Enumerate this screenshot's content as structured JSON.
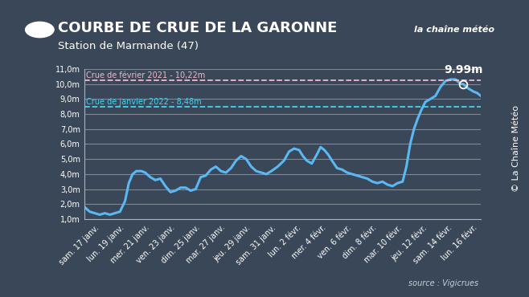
{
  "chart_data": {
    "type": "line",
    "title": "COURBE DE CRUE DE LA GARONNE",
    "subtitle": "Station de Marmande (47)",
    "logo": "la chaîne météo",
    "source": "source : Vigicrues",
    "copyright": "© La Chaîne Météo",
    "color": "#5ab8f2",
    "grid": true,
    "x": [
      -0.8,
      -0.4,
      0,
      0.4,
      0.8,
      1.2,
      1.6,
      2.0,
      2.4,
      2.7,
      3.0,
      3.3,
      3.7,
      4.0,
      4.4,
      4.8,
      5.2,
      5.6,
      6.0,
      6.4,
      6.8,
      7.2,
      7.6,
      8.0,
      8.4,
      8.8,
      9.2,
      9.6,
      10.0,
      10.4,
      10.8,
      11.2,
      11.6,
      12.0,
      12.4,
      12.8,
      13.2,
      13.6,
      14.0,
      14.5,
      15.0,
      15.4,
      15.8,
      16.2,
      16.5,
      16.8,
      17.2,
      17.6,
      17.9,
      18.2,
      18.5,
      18.8,
      19.2,
      19.6,
      20.0,
      20.4,
      20.8,
      21.2,
      21.6,
      22.0,
      22.4,
      22.8,
      23.2,
      23.6,
      24.0,
      24.4,
      24.7,
      25.0,
      25.3,
      25.6,
      25.9,
      26.2,
      26.6,
      27.0,
      27.4,
      27.8,
      28.2,
      28.6,
      29.0,
      29.2,
      29.6,
      30.0,
      30.3,
      30.6
    ],
    "values": [
      1.8,
      1.5,
      1.4,
      1.3,
      1.4,
      1.3,
      1.4,
      1.5,
      2.2,
      3.4,
      4.0,
      4.2,
      4.2,
      4.1,
      3.8,
      3.6,
      3.7,
      3.2,
      2.8,
      2.9,
      3.1,
      3.1,
      2.9,
      3.0,
      3.8,
      3.9,
      4.3,
      4.5,
      4.2,
      4.1,
      4.4,
      4.9,
      5.2,
      5.0,
      4.5,
      4.2,
      4.1,
      4.0,
      4.2,
      4.5,
      4.9,
      5.5,
      5.7,
      5.6,
      5.2,
      4.9,
      4.7,
      5.3,
      5.8,
      5.6,
      5.3,
      4.9,
      4.4,
      4.3,
      4.1,
      4.0,
      3.9,
      3.8,
      3.7,
      3.5,
      3.4,
      3.5,
      3.3,
      3.2,
      3.4,
      3.5,
      4.5,
      6.0,
      7.0,
      7.7,
      8.3,
      8.8,
      9.0,
      9.2,
      9.8,
      10.2,
      10.3,
      10.3,
      10.0,
      9.99,
      9.7,
      9.5,
      9.4,
      9.2
    ],
    "xlim": [
      -0.8,
      30.6
    ],
    "xticks": [
      {
        "value": 0,
        "label": "sam. 17 janv."
      },
      {
        "value": 2,
        "label": "lun. 19 janv."
      },
      {
        "value": 4,
        "label": "mer. 21 janv."
      },
      {
        "value": 6,
        "label": "ven. 23 janv."
      },
      {
        "value": 8,
        "label": "dim. 25 janv."
      },
      {
        "value": 10,
        "label": "mar. 27 janv."
      },
      {
        "value": 12,
        "label": "jeu. 29 janv."
      },
      {
        "value": 14,
        "label": "sam. 31 janv."
      },
      {
        "value": 16,
        "label": "lun. 2 févr."
      },
      {
        "value": 18,
        "label": "mer. 4 févr."
      },
      {
        "value": 20,
        "label": "ven. 6 févr."
      },
      {
        "value": 22,
        "label": "dim. 8 févr."
      },
      {
        "value": 24,
        "label": "mar. 10 févr."
      },
      {
        "value": 26,
        "label": "jeu. 12 févr."
      },
      {
        "value": 28,
        "label": "sam. 14 févr."
      },
      {
        "value": 30,
        "label": "lun. 16 févr."
      }
    ],
    "ylim": [
      1,
      11
    ],
    "yticks": [
      {
        "value": 1,
        "label": "1,0m"
      },
      {
        "value": 2,
        "label": "2,0m"
      },
      {
        "value": 3,
        "label": "3,0m"
      },
      {
        "value": 4,
        "label": "4,0m"
      },
      {
        "value": 5,
        "label": "5,0m"
      },
      {
        "value": 6,
        "label": "6,0m"
      },
      {
        "value": 7,
        "label": "7,0m"
      },
      {
        "value": 8,
        "label": "8,0m"
      },
      {
        "value": 9,
        "label": "9,0m"
      },
      {
        "value": 10,
        "label": "10,0m"
      },
      {
        "value": 11,
        "label": "11,0m"
      }
    ],
    "reference_lines": [
      {
        "label": "Crue de février 2021 - 10,22m",
        "value": 10.22,
        "color": "#f2b8cc"
      },
      {
        "label": "Crue de janvier 2022 - 8,48m",
        "value": 8.48,
        "color": "#3fd6f0"
      }
    ],
    "annotations": [
      {
        "text": "9.99m",
        "x": 29.2,
        "y": 9.99
      }
    ]
  }
}
